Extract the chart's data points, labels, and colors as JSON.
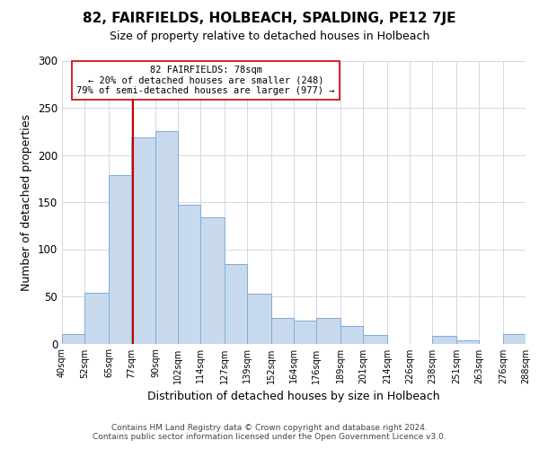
{
  "title": "82, FAIRFIELDS, HOLBEACH, SPALDING, PE12 7JE",
  "subtitle": "Size of property relative to detached houses in Holbeach",
  "xlabel": "Distribution of detached houses by size in Holbeach",
  "ylabel": "Number of detached properties",
  "footer_line1": "Contains HM Land Registry data © Crown copyright and database right 2024.",
  "footer_line2": "Contains public sector information licensed under the Open Government Licence v3.0.",
  "bin_labels": [
    "40sqm",
    "52sqm",
    "65sqm",
    "77sqm",
    "90sqm",
    "102sqm",
    "114sqm",
    "127sqm",
    "139sqm",
    "152sqm",
    "164sqm",
    "176sqm",
    "189sqm",
    "201sqm",
    "214sqm",
    "226sqm",
    "238sqm",
    "251sqm",
    "263sqm",
    "276sqm",
    "288sqm"
  ],
  "bar_heights": [
    10,
    54,
    179,
    219,
    225,
    147,
    134,
    84,
    53,
    27,
    24,
    27,
    19,
    9,
    0,
    0,
    8,
    3,
    0,
    10
  ],
  "bin_edges": [
    40,
    52,
    65,
    77,
    90,
    102,
    114,
    127,
    139,
    152,
    164,
    176,
    189,
    201,
    214,
    226,
    238,
    251,
    263,
    276,
    288
  ],
  "bar_color": "#c9d9ed",
  "bar_edge_color": "#7aadd4",
  "vline_x": 78,
  "vline_color": "#cc0000",
  "annotation_line1": "82 FAIRFIELDS: 78sqm",
  "annotation_line2": "← 20% of detached houses are smaller (248)",
  "annotation_line3": "79% of semi-detached houses are larger (977) →",
  "annotation_box_edge_color": "#cc0000",
  "annotation_fontsize": 7.5,
  "ylim": [
    0,
    300
  ],
  "yticks": [
    0,
    50,
    100,
    150,
    200,
    250,
    300
  ],
  "background_color": "#ffffff",
  "grid_color": "#d0d8e8"
}
